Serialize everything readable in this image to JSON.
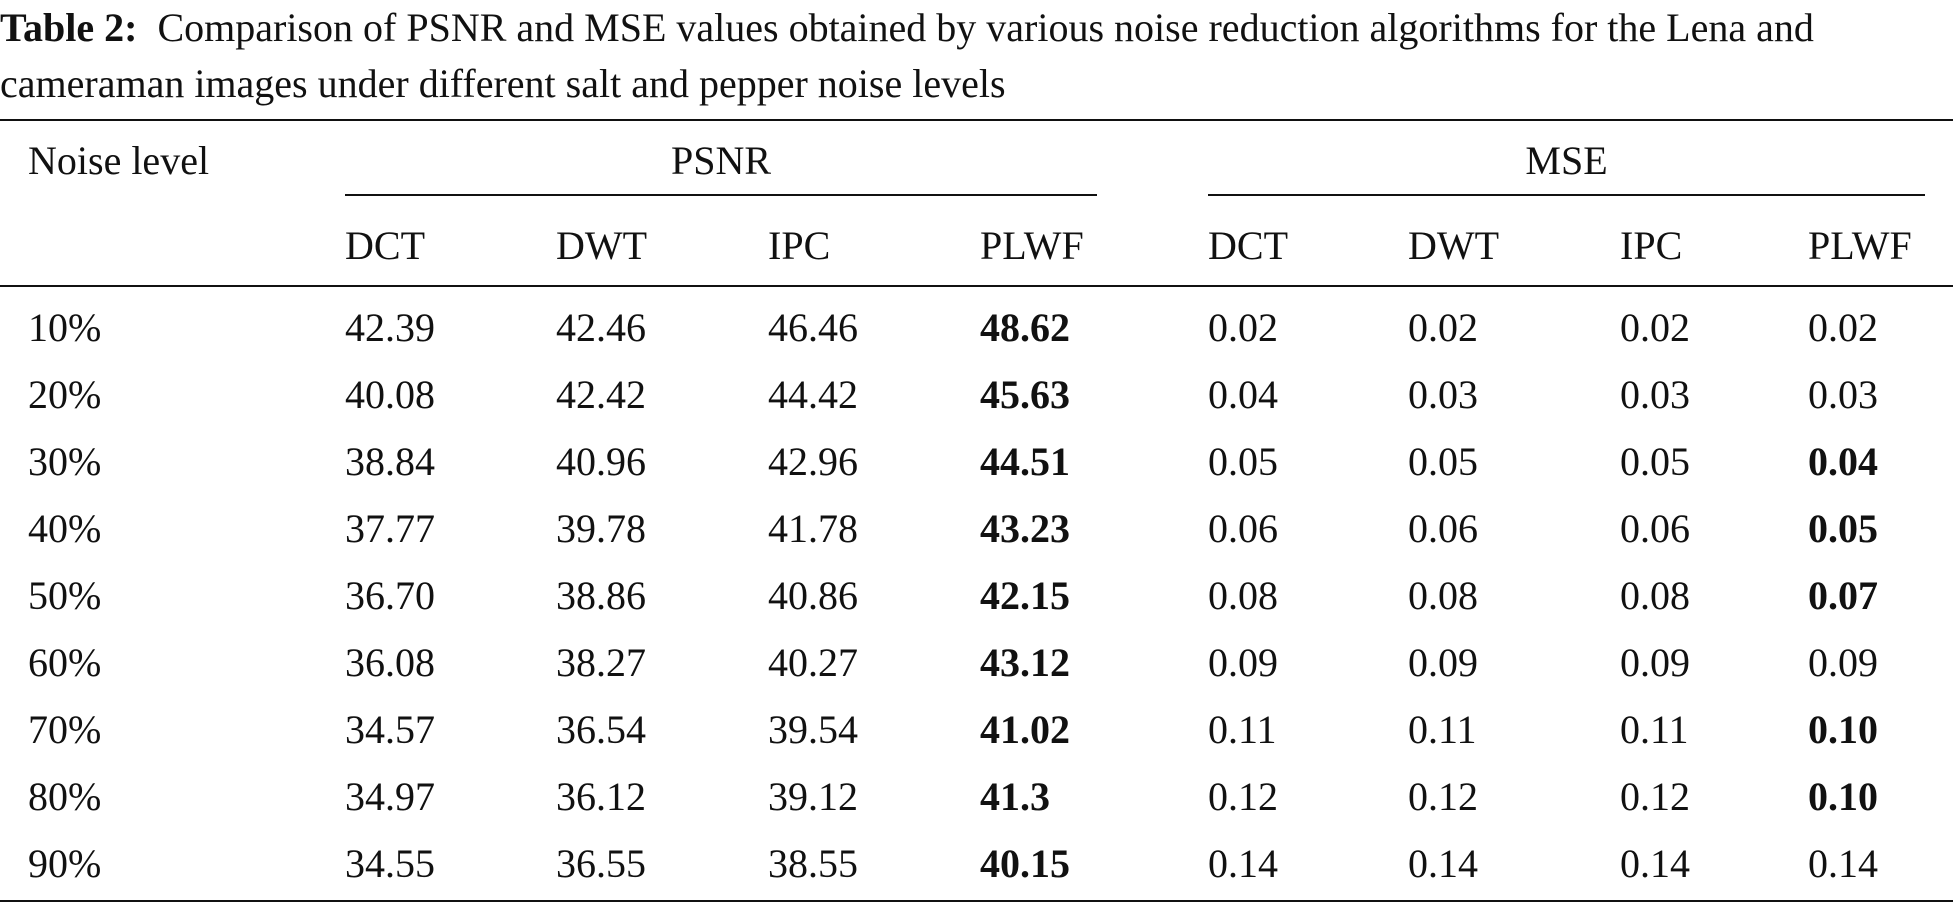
{
  "caption": {
    "label": "Table 2:",
    "text": "Comparison of PSNR and MSE values obtained by various noise reduction algorithms for the Lena and cameraman images under different salt and pepper noise levels"
  },
  "table": {
    "row_header": "Noise level",
    "groups": [
      "PSNR",
      "MSE"
    ],
    "columns": [
      "DCT",
      "DWT",
      "IPC",
      "PLWF",
      "DCT",
      "DWT",
      "IPC",
      "PLWF"
    ],
    "rows": [
      {
        "label": "10%",
        "values": [
          "42.39",
          "42.46",
          "46.46",
          "48.62",
          "0.02",
          "0.02",
          "0.02",
          "0.02"
        ],
        "bold": [
          false,
          false,
          false,
          true,
          false,
          false,
          false,
          false
        ]
      },
      {
        "label": "20%",
        "values": [
          "40.08",
          "42.42",
          "44.42",
          "45.63",
          "0.04",
          "0.03",
          "0.03",
          "0.03"
        ],
        "bold": [
          false,
          false,
          false,
          true,
          false,
          false,
          false,
          false
        ]
      },
      {
        "label": "30%",
        "values": [
          "38.84",
          "40.96",
          "42.96",
          "44.51",
          "0.05",
          "0.05",
          "0.05",
          "0.04"
        ],
        "bold": [
          false,
          false,
          false,
          true,
          false,
          false,
          false,
          true
        ]
      },
      {
        "label": "40%",
        "values": [
          "37.77",
          "39.78",
          "41.78",
          "43.23",
          "0.06",
          "0.06",
          "0.06",
          "0.05"
        ],
        "bold": [
          false,
          false,
          false,
          true,
          false,
          false,
          false,
          true
        ]
      },
      {
        "label": "50%",
        "values": [
          "36.70",
          "38.86",
          "40.86",
          "42.15",
          "0.08",
          "0.08",
          "0.08",
          "0.07"
        ],
        "bold": [
          false,
          false,
          false,
          true,
          false,
          false,
          false,
          true
        ]
      },
      {
        "label": "60%",
        "values": [
          "36.08",
          "38.27",
          "40.27",
          "43.12",
          "0.09",
          "0.09",
          "0.09",
          "0.09"
        ],
        "bold": [
          false,
          false,
          false,
          true,
          false,
          false,
          false,
          false
        ]
      },
      {
        "label": "70%",
        "values": [
          "34.57",
          "36.54",
          "39.54",
          "41.02",
          "0.11",
          "0.11",
          "0.11",
          "0.10"
        ],
        "bold": [
          false,
          false,
          false,
          true,
          false,
          false,
          false,
          true
        ]
      },
      {
        "label": "80%",
        "values": [
          "34.97",
          "36.12",
          "39.12",
          "41.3",
          "0.12",
          "0.12",
          "0.12",
          "0.10"
        ],
        "bold": [
          false,
          false,
          false,
          true,
          false,
          false,
          false,
          true
        ]
      },
      {
        "label": "90%",
        "values": [
          "34.55",
          "36.55",
          "38.55",
          "40.15",
          "0.14",
          "0.14",
          "0.14",
          "0.14"
        ],
        "bold": [
          false,
          false,
          false,
          true,
          false,
          false,
          false,
          false
        ]
      }
    ]
  }
}
